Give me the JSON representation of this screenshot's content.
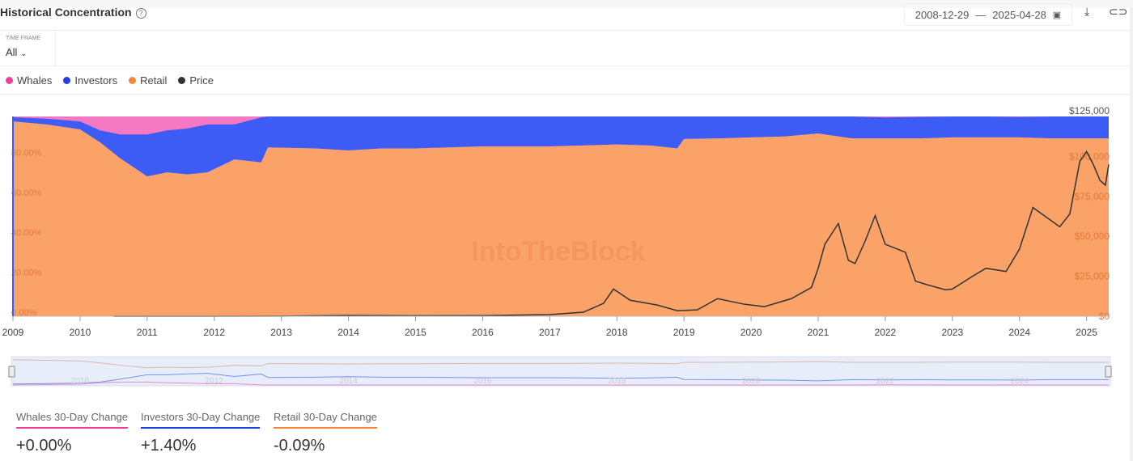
{
  "header": {
    "title": "Historical Concentration",
    "date_start": "2008-12-29",
    "date_separator": "—",
    "date_end": "2025-04-28"
  },
  "time_frame": {
    "label": "TIME FRAME",
    "value": "All"
  },
  "legend": [
    {
      "name": "Whales",
      "color": "#f03e9e"
    },
    {
      "name": "Investors",
      "color": "#1e40e6"
    },
    {
      "name": "Retail",
      "color": "#f5873a"
    },
    {
      "name": "Price",
      "color": "#333333"
    }
  ],
  "watermark": "IntoTheBlock",
  "chart_data": {
    "type": "area",
    "stacked": true,
    "x_ticks": [
      "2009",
      "2010",
      "2011",
      "2012",
      "2013",
      "2014",
      "2015",
      "2016",
      "2017",
      "2018",
      "2019",
      "2020",
      "2021",
      "2022",
      "2023",
      "2024",
      "2025"
    ],
    "x_range": [
      2009,
      2025.33
    ],
    "y_left_ticks": [
      "0.00%",
      "20.00%",
      "40.00%",
      "60.00%",
      "80.00%"
    ],
    "y_left_range": [
      0,
      100
    ],
    "y_right_ticks": [
      "$0",
      "$25,000",
      "$50,000",
      "$75,000",
      "$100,000",
      "$125,000"
    ],
    "y_right_range": [
      0,
      125000
    ],
    "x": [
      2009,
      2009.5,
      2010,
      2010.3,
      2010.6,
      2011,
      2011.3,
      2011.6,
      2011.9,
      2012.3,
      2012.7,
      2012.8,
      2013.5,
      2014,
      2014.5,
      2015,
      2016,
      2017,
      2017.5,
      2018,
      2018.5,
      2018.9,
      2019,
      2019.5,
      2020,
      2020.5,
      2021,
      2021.5,
      2022,
      2022.5,
      2023,
      2023.5,
      2024,
      2024.5,
      2025,
      2025.33
    ],
    "series": [
      {
        "name": "Retail",
        "values": [
          97.5,
          96,
          93.5,
          87,
          79,
          70,
          72,
          71,
          72,
          78.5,
          77,
          84.5,
          84,
          83,
          84,
          84,
          85,
          85,
          85.5,
          86,
          85.5,
          84,
          88.7,
          89,
          89.5,
          90,
          91.5,
          89,
          89,
          89,
          89.5,
          89.5,
          89.5,
          89,
          89,
          89
        ]
      },
      {
        "name": "Investors",
        "values": [
          2.1,
          2.9,
          4,
          6,
          12,
          21,
          21,
          23,
          24,
          17.5,
          22.6,
          15.5,
          16,
          17,
          16,
          16,
          15,
          15,
          14.5,
          14,
          14.5,
          16,
          11.3,
          11,
          10.5,
          10,
          8.5,
          11,
          10.5,
          10.8,
          10.5,
          10.5,
          10.3,
          11,
          11,
          11
        ]
      },
      {
        "name": "Whales",
        "values": [
          0.4,
          1.1,
          2.5,
          7,
          9,
          9,
          7,
          6,
          4,
          4,
          0.4,
          0,
          0,
          0,
          0,
          0,
          0,
          0,
          0,
          0,
          0,
          0,
          0,
          0,
          0,
          0,
          0,
          0,
          0.5,
          0.2,
          0,
          0,
          0.2,
          0,
          0,
          0
        ]
      },
      {
        "name": "Price",
        "axis": "right",
        "x": [
          2010.5,
          2013,
          2014,
          2015,
          2016,
          2017,
          2017.5,
          2017.8,
          2017.95,
          2018.2,
          2018.6,
          2018.9,
          2019.2,
          2019.5,
          2019.9,
          2020.2,
          2020.6,
          2020.9,
          2021.0,
          2021.1,
          2021.3,
          2021.45,
          2021.55,
          2021.7,
          2021.85,
          2022.0,
          2022.3,
          2022.45,
          2022.6,
          2022.9,
          2023.0,
          2023.3,
          2023.5,
          2023.8,
          2024.0,
          2024.2,
          2024.4,
          2024.6,
          2024.75,
          2024.9,
          2025.0,
          2025.1,
          2025.2,
          2025.28,
          2025.33
        ],
        "values": [
          0,
          50,
          500,
          300,
          400,
          1000,
          2500,
          8000,
          17000,
          10000,
          7000,
          3500,
          4000,
          11000,
          7500,
          6000,
          11000,
          18000,
          30000,
          45000,
          58000,
          35000,
          33000,
          47000,
          63000,
          45000,
          40000,
          22000,
          20000,
          16500,
          17000,
          25000,
          30000,
          28000,
          42000,
          68000,
          62000,
          56000,
          64000,
          97000,
          103000,
          95000,
          85000,
          82000,
          95000
        ]
      }
    ]
  },
  "navigator": {
    "labels": [
      "2010",
      "2012",
      "2014",
      "2016",
      "2018",
      "2020",
      "2022",
      "2024"
    ]
  },
  "stats": [
    {
      "label": "Whales 30-Day Change",
      "value": "+0.00%",
      "color": "#f03e9e"
    },
    {
      "label": "Investors 30-Day Change",
      "value": "+1.40%",
      "color": "#1e40e6"
    },
    {
      "label": "Retail 30-Day Change",
      "value": "-0.09%",
      "color": "#f5873a"
    }
  ]
}
